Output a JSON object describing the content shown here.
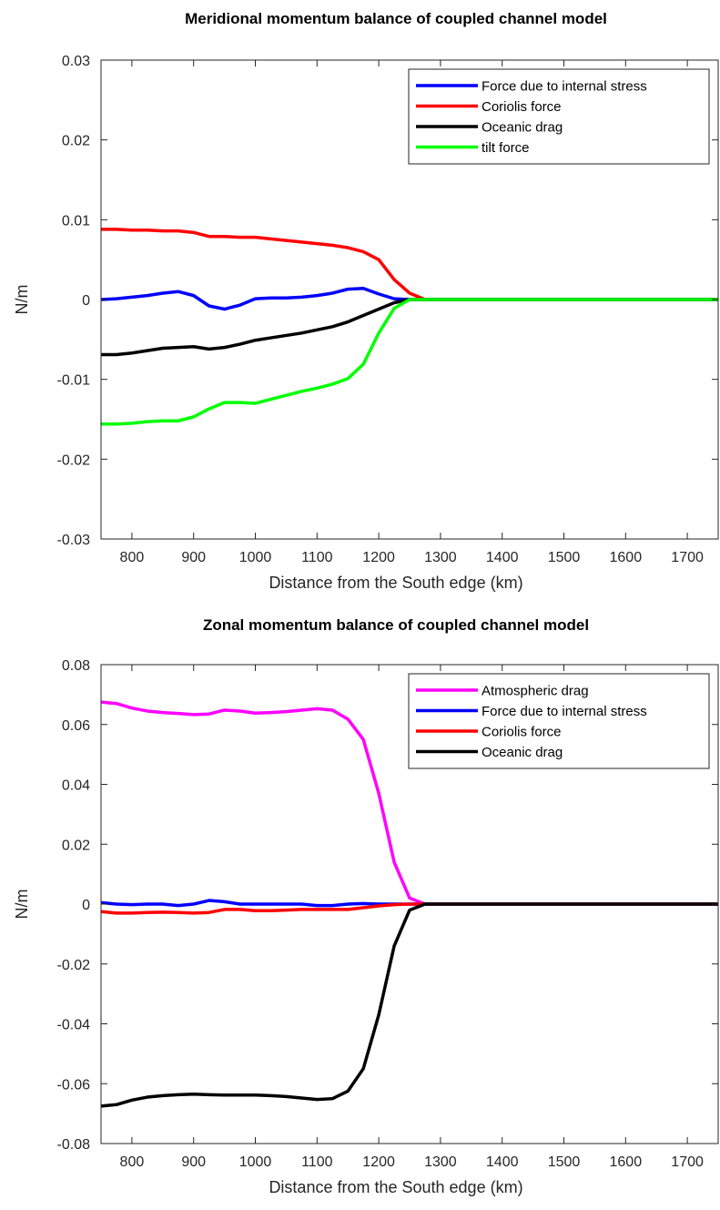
{
  "chart_data": [
    {
      "type": "line",
      "title": "Meridional momentum balance of coupled channel model",
      "xlabel": "Distance from the South edge (km)",
      "ylabel": "N/m",
      "xlim": [
        750,
        1750
      ],
      "ylim": [
        -0.03,
        0.03
      ],
      "xticks": [
        800,
        900,
        1000,
        1100,
        1200,
        1300,
        1400,
        1500,
        1600,
        1700
      ],
      "xtick_labels": [
        "800",
        "900",
        "1000",
        "1100",
        "1200",
        "1300",
        "1400",
        "1500",
        "1600",
        "1700"
      ],
      "yticks": [
        -0.03,
        -0.02,
        -0.01,
        0,
        0.01,
        0.02,
        0.03
      ],
      "ytick_labels": [
        "-0.03",
        "-0.02",
        "-0.01",
        "0",
        "0.01",
        "0.02",
        "0.03"
      ],
      "grid": false,
      "legend_position": "top-right",
      "x": [
        750,
        775,
        800,
        825,
        850,
        875,
        900,
        925,
        950,
        975,
        1000,
        1025,
        1050,
        1075,
        1100,
        1125,
        1150,
        1175,
        1200,
        1225,
        1250,
        1275,
        1300,
        1750
      ],
      "series": [
        {
          "name": "Force due to internal stress",
          "color": "#0000ff",
          "values": [
            0.0,
            0.0001,
            0.0003,
            0.0005,
            0.0008,
            0.001,
            0.0005,
            -0.0008,
            -0.0012,
            -0.0007,
            0.0001,
            0.0002,
            0.0002,
            0.0003,
            0.0005,
            0.0008,
            0.0013,
            0.0014,
            0.0007,
            0.0001,
            0.0,
            0.0,
            0.0,
            0.0
          ]
        },
        {
          "name": "Coriolis force",
          "color": "#ff0000",
          "values": [
            0.0088,
            0.0088,
            0.0087,
            0.0087,
            0.0086,
            0.0086,
            0.0084,
            0.0079,
            0.0079,
            0.0078,
            0.0078,
            0.0076,
            0.0074,
            0.0072,
            0.007,
            0.0068,
            0.0065,
            0.006,
            0.005,
            0.0025,
            0.0008,
            0.0,
            0.0,
            0.0
          ]
        },
        {
          "name": "Oceanic drag",
          "color": "#000000",
          "values": [
            -0.0069,
            -0.0069,
            -0.0067,
            -0.0064,
            -0.0061,
            -0.006,
            -0.0059,
            -0.0062,
            -0.006,
            -0.0056,
            -0.0051,
            -0.0048,
            -0.0045,
            -0.0042,
            -0.0038,
            -0.0034,
            -0.0028,
            -0.002,
            -0.0012,
            -0.0004,
            0.0,
            0.0,
            0.0,
            0.0
          ]
        },
        {
          "name": "tilt force",
          "color": "#00ff00",
          "values": [
            -0.0156,
            -0.0156,
            -0.0155,
            -0.0153,
            -0.0152,
            -0.0152,
            -0.0147,
            -0.0137,
            -0.0129,
            -0.0129,
            -0.013,
            -0.0125,
            -0.012,
            -0.0115,
            -0.0111,
            -0.0106,
            -0.0099,
            -0.0081,
            -0.0042,
            -0.0011,
            0.0,
            0.0,
            0.0,
            0.0
          ]
        }
      ]
    },
    {
      "type": "line",
      "title": "Zonal momentum balance of coupled channel model",
      "xlabel": "Distance from the South edge (km)",
      "ylabel": "N/m",
      "xlim": [
        750,
        1750
      ],
      "ylim": [
        -0.08,
        0.08
      ],
      "xticks": [
        800,
        900,
        1000,
        1100,
        1200,
        1300,
        1400,
        1500,
        1600,
        1700
      ],
      "xtick_labels": [
        "800",
        "900",
        "1000",
        "1100",
        "1200",
        "1300",
        "1400",
        "1500",
        "1600",
        "1700"
      ],
      "yticks": [
        -0.08,
        -0.06,
        -0.04,
        -0.02,
        0,
        0.02,
        0.04,
        0.06,
        0.08
      ],
      "ytick_labels": [
        "-0.08",
        "-0.06",
        "-0.04",
        "-0.02",
        "0",
        "0.02",
        "0.04",
        "0.06",
        "0.08"
      ],
      "grid": false,
      "legend_position": "top-right",
      "x": [
        750,
        775,
        800,
        825,
        850,
        875,
        900,
        925,
        950,
        975,
        1000,
        1025,
        1050,
        1075,
        1100,
        1125,
        1150,
        1175,
        1200,
        1225,
        1250,
        1275,
        1300,
        1750
      ],
      "series": [
        {
          "name": "Atmospheric drag",
          "color": "#ff00ff",
          "values": [
            0.0675,
            0.067,
            0.0655,
            0.0645,
            0.064,
            0.0637,
            0.0633,
            0.0635,
            0.0648,
            0.0645,
            0.0638,
            0.064,
            0.0643,
            0.0648,
            0.0653,
            0.0648,
            0.0618,
            0.055,
            0.037,
            0.014,
            0.002,
            0.0,
            0.0,
            0.0
          ]
        },
        {
          "name": "Force due to internal stress",
          "color": "#0000ff",
          "values": [
            0.0005,
            0.0,
            -0.0002,
            0.0,
            0.0,
            -0.0005,
            0.0,
            0.0012,
            0.0008,
            0.0,
            0.0,
            0.0,
            0.0,
            0.0,
            -0.0005,
            -0.0005,
            0.0,
            0.0002,
            0.0,
            0.0,
            0.0,
            0.0,
            0.0,
            0.0
          ]
        },
        {
          "name": "Coriolis force",
          "color": "#ff0000",
          "values": [
            -0.0025,
            -0.003,
            -0.003,
            -0.0028,
            -0.0027,
            -0.0028,
            -0.003,
            -0.0028,
            -0.0018,
            -0.0018,
            -0.0022,
            -0.0022,
            -0.002,
            -0.0018,
            -0.0018,
            -0.0018,
            -0.0018,
            -0.0012,
            -0.0006,
            -0.0002,
            0.0,
            0.0,
            0.0,
            0.0
          ]
        },
        {
          "name": "Oceanic drag",
          "color": "#000000",
          "values": [
            -0.0675,
            -0.067,
            -0.0655,
            -0.0645,
            -0.064,
            -0.0637,
            -0.0635,
            -0.0637,
            -0.0638,
            -0.0638,
            -0.0638,
            -0.064,
            -0.0643,
            -0.0648,
            -0.0653,
            -0.065,
            -0.0625,
            -0.055,
            -0.037,
            -0.014,
            -0.002,
            0.0,
            0.0,
            0.0
          ]
        }
      ]
    }
  ]
}
